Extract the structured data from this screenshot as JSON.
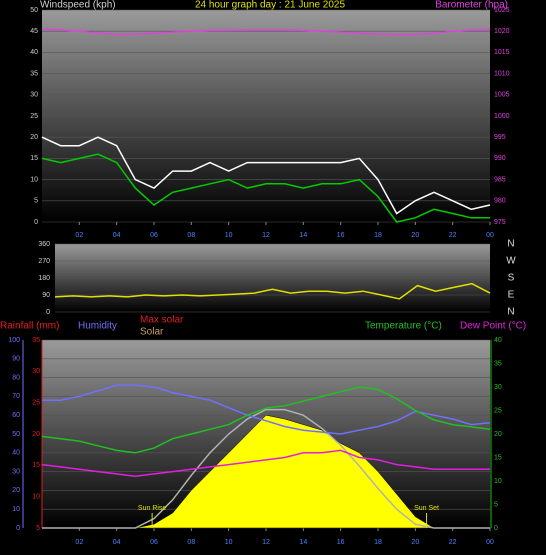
{
  "chart_data": [
    {
      "type": "line",
      "title": "24 hour graph day : 21 June 2025",
      "x": [
        0,
        1,
        2,
        3,
        4,
        5,
        6,
        7,
        8,
        9,
        10,
        11,
        12,
        13,
        14,
        15,
        16,
        17,
        18,
        19,
        20,
        21,
        22,
        23,
        24
      ],
      "xlim": [
        0,
        24
      ],
      "xticks": [
        {
          "value": 2,
          "label": "02"
        },
        {
          "value": 4,
          "label": "04"
        },
        {
          "value": 6,
          "label": "06"
        },
        {
          "value": 8,
          "label": "08"
        },
        10,
        12,
        14,
        16,
        18,
        20,
        22,
        {
          "value": 24,
          "label": "00"
        }
      ],
      "axes": [
        {
          "label": "Windspeed (kph)",
          "color": "#d0d0d0",
          "lim": [
            0,
            50
          ],
          "ticks": [
            0,
            5,
            10,
            15,
            20,
            25,
            30,
            35,
            40,
            45,
            50
          ]
        },
        {
          "label": "Barometer (hpa)",
          "color": "#e040e0",
          "lim": [
            975,
            1025
          ],
          "ticks": [
            975,
            980,
            985,
            990,
            995,
            1000,
            1005,
            1010,
            1015,
            1020,
            1025
          ]
        }
      ],
      "grid": true,
      "series": [
        {
          "color": "#ffffff",
          "axis": 0,
          "values": [
            20,
            18,
            18,
            20,
            18,
            10,
            8,
            12,
            12,
            14,
            12,
            14,
            14,
            14,
            14,
            14,
            14,
            15,
            10,
            2,
            5,
            7,
            5,
            3,
            4
          ]
        },
        {
          "color": "#00cc00",
          "axis": 0,
          "values": [
            15,
            14,
            15,
            16,
            14,
            8,
            4,
            7,
            8,
            9,
            10,
            8,
            9,
            9,
            8,
            9,
            9,
            10,
            6,
            0,
            1,
            3,
            2,
            1,
            1
          ]
        },
        {
          "color": "#e040e0",
          "axis": 1,
          "values": [
            1020.5,
            1020.3,
            1020,
            1019.6,
            1019.2,
            1019.3,
            1019.5,
            1019.8,
            1020,
            1020.2,
            1020.2,
            1020.3,
            1020.3,
            1020.3,
            1020.2,
            1020,
            1019.8,
            1019.5,
            1019.3,
            1019.2,
            1019.2,
            1019.5,
            1020,
            1020.3,
            1020.3
          ]
        }
      ]
    },
    {
      "type": "line",
      "x": [
        0,
        1,
        2,
        3,
        4,
        5,
        6,
        7,
        8,
        9,
        10,
        11,
        12,
        13,
        14,
        15,
        16,
        17,
        18,
        19,
        20,
        21,
        22,
        23,
        24
      ],
      "xlim": [
        0,
        24
      ],
      "axes": [
        {
          "color": "#d0d0d0",
          "lim": [
            0,
            360
          ],
          "ticks": [
            0,
            90,
            180,
            270,
            360
          ]
        }
      ],
      "compass": [
        "N",
        "W",
        "S",
        "E",
        "N"
      ],
      "grid": true,
      "series": [
        {
          "color": "#e0e000",
          "axis": 0,
          "values": [
            80,
            85,
            80,
            85,
            80,
            90,
            85,
            90,
            85,
            90,
            95,
            100,
            120,
            100,
            110,
            110,
            100,
            110,
            90,
            70,
            140,
            110,
            130,
            150,
            100
          ]
        }
      ]
    },
    {
      "type": "line",
      "x": [
        0,
        1,
        2,
        3,
        4,
        5,
        6,
        7,
        8,
        9,
        10,
        11,
        12,
        13,
        14,
        15,
        16,
        17,
        18,
        19,
        20,
        21,
        22,
        23,
        24
      ],
      "xlim": [
        0,
        24
      ],
      "xticks": [
        {
          "value": 2,
          "label": "02"
        },
        {
          "value": 4,
          "label": "04"
        },
        {
          "value": 6,
          "label": "06"
        },
        {
          "value": 8,
          "label": "08"
        },
        10,
        12,
        14,
        16,
        18,
        20,
        22,
        {
          "value": 24,
          "label": "00"
        }
      ],
      "axes": [
        {
          "color": "#7070ff",
          "lim": [
            0,
            100
          ],
          "ticks": [
            0,
            10,
            20,
            30,
            40,
            50,
            60,
            70,
            80,
            90,
            100
          ]
        },
        {
          "label": "Rainfall (mm)",
          "color": "#e02020",
          "lim": [
            5,
            35
          ],
          "ticks": [
            5,
            10,
            15,
            20,
            25,
            30,
            35
          ]
        },
        {
          "color": "#20c020",
          "lim": [
            0,
            40
          ],
          "ticks": [
            0,
            5,
            10,
            15,
            20,
            25,
            30,
            35,
            40
          ]
        }
      ],
      "grid": true,
      "annotations": [
        {
          "text": "Sun Rise",
          "x": 5.9
        },
        {
          "text": "Sun Set",
          "x": 20.6
        }
      ],
      "series": [
        {
          "name": "Solar",
          "color": "#ffff00",
          "axis": 0,
          "style": "area",
          "values": [
            0,
            0,
            0,
            0,
            0,
            0,
            2,
            8,
            20,
            30,
            40,
            50,
            60,
            58,
            55,
            52,
            45,
            40,
            30,
            18,
            6,
            0,
            0,
            0,
            0
          ]
        },
        {
          "name": "Max solar",
          "color": "#b0b0b0",
          "axis": 0,
          "values": [
            0,
            0,
            0,
            0,
            0,
            0,
            5,
            15,
            28,
            40,
            50,
            58,
            63,
            63,
            60,
            53,
            44,
            33,
            21,
            10,
            2,
            0,
            0,
            0,
            0
          ]
        },
        {
          "name": "Humidity",
          "color": "#7070ff",
          "axis": 0,
          "values": [
            68,
            68,
            70,
            73,
            76,
            76,
            75,
            72,
            70,
            68,
            64,
            60,
            57,
            54,
            52,
            51,
            50,
            52,
            54,
            57,
            62,
            60,
            58,
            55,
            56
          ]
        },
        {
          "name": "Temperature (°C)",
          "color": "#20c020",
          "axis": 2,
          "values": [
            19.5,
            19,
            18.5,
            17.5,
            16.5,
            16,
            17,
            19,
            20,
            21,
            22,
            24,
            25.5,
            26,
            27,
            28,
            29,
            30,
            29.5,
            27.5,
            25,
            23,
            22,
            21.5,
            21
          ]
        },
        {
          "name": "Dew Point (°C)",
          "color": "#e020e0",
          "axis": 2,
          "values": [
            13.5,
            13,
            12.5,
            12,
            11.5,
            11,
            11.5,
            12,
            12.5,
            13,
            13.5,
            14,
            14.5,
            15,
            16,
            16,
            16.5,
            15,
            14.5,
            13.5,
            13,
            12.5,
            12.5,
            12.5,
            12.5
          ]
        }
      ]
    }
  ]
}
